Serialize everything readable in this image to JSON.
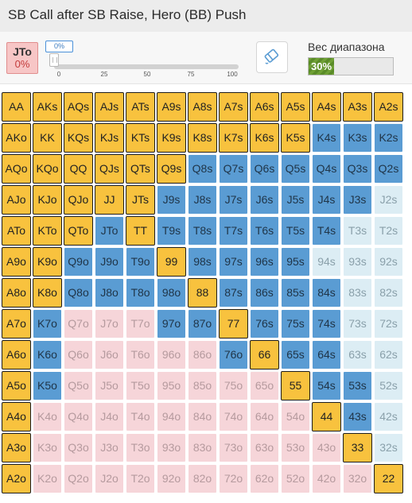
{
  "title": "SB Call after SB Raise, Hero (BB) Push",
  "selected_hand": {
    "label": "JTo",
    "percent": "0%"
  },
  "slider": {
    "value_label": "0%",
    "ticks": [
      "0",
      "25",
      "50",
      "75",
      "100"
    ]
  },
  "eraser_icon": "eraser-icon",
  "range_weight": {
    "label": "Вес диапазона",
    "value": "30%",
    "fraction": 0.3
  },
  "colors": {
    "push": "#f8c23e",
    "call": "#5a9cd3",
    "call_light": "#dcedf4",
    "fold": "#f6d5d9",
    "weight_fill": "#6fa035"
  },
  "grid": [
    [
      [
        "AA",
        "y"
      ],
      [
        "AKs",
        "y"
      ],
      [
        "AQs",
        "y"
      ],
      [
        "AJs",
        "y"
      ],
      [
        "ATs",
        "y"
      ],
      [
        "A9s",
        "y"
      ],
      [
        "A8s",
        "y"
      ],
      [
        "A7s",
        "y"
      ],
      [
        "A6s",
        "y"
      ],
      [
        "A5s",
        "y"
      ],
      [
        "A4s",
        "y"
      ],
      [
        "A3s",
        "y"
      ],
      [
        "A2s",
        "y"
      ]
    ],
    [
      [
        "AKo",
        "y"
      ],
      [
        "KK",
        "y"
      ],
      [
        "KQs",
        "y"
      ],
      [
        "KJs",
        "y"
      ],
      [
        "KTs",
        "y"
      ],
      [
        "K9s",
        "y"
      ],
      [
        "K8s",
        "y"
      ],
      [
        "K7s",
        "y"
      ],
      [
        "K6s",
        "y"
      ],
      [
        "K5s",
        "y"
      ],
      [
        "K4s",
        "b"
      ],
      [
        "K3s",
        "b"
      ],
      [
        "K2s",
        "b"
      ]
    ],
    [
      [
        "AQo",
        "y"
      ],
      [
        "KQo",
        "y"
      ],
      [
        "QQ",
        "y"
      ],
      [
        "QJs",
        "y"
      ],
      [
        "QTs",
        "y"
      ],
      [
        "Q9s",
        "y"
      ],
      [
        "Q8s",
        "b"
      ],
      [
        "Q7s",
        "b"
      ],
      [
        "Q6s",
        "b"
      ],
      [
        "Q5s",
        "b"
      ],
      [
        "Q4s",
        "b"
      ],
      [
        "Q3s",
        "b"
      ],
      [
        "Q2s",
        "b"
      ]
    ],
    [
      [
        "AJo",
        "y"
      ],
      [
        "KJo",
        "y"
      ],
      [
        "QJo",
        "y"
      ],
      [
        "JJ",
        "y"
      ],
      [
        "JTs",
        "y"
      ],
      [
        "J9s",
        "b"
      ],
      [
        "J8s",
        "b"
      ],
      [
        "J7s",
        "b"
      ],
      [
        "J6s",
        "b"
      ],
      [
        "J5s",
        "b"
      ],
      [
        "J4s",
        "b"
      ],
      [
        "J3s",
        "b"
      ],
      [
        "J2s",
        "lb"
      ]
    ],
    [
      [
        "ATo",
        "y"
      ],
      [
        "KTo",
        "y"
      ],
      [
        "QTo",
        "y"
      ],
      [
        "JTo",
        "b"
      ],
      [
        "TT",
        "y"
      ],
      [
        "T9s",
        "b"
      ],
      [
        "T8s",
        "b"
      ],
      [
        "T7s",
        "b"
      ],
      [
        "T6s",
        "b"
      ],
      [
        "T5s",
        "b"
      ],
      [
        "T4s",
        "b"
      ],
      [
        "T3s",
        "lb"
      ],
      [
        "T2s",
        "lb"
      ]
    ],
    [
      [
        "A9o",
        "y"
      ],
      [
        "K9o",
        "y"
      ],
      [
        "Q9o",
        "b"
      ],
      [
        "J9o",
        "b"
      ],
      [
        "T9o",
        "b"
      ],
      [
        "99",
        "y"
      ],
      [
        "98s",
        "b"
      ],
      [
        "97s",
        "b"
      ],
      [
        "96s",
        "b"
      ],
      [
        "95s",
        "b"
      ],
      [
        "94s",
        "lb"
      ],
      [
        "93s",
        "lb"
      ],
      [
        "92s",
        "lb"
      ]
    ],
    [
      [
        "A8o",
        "y"
      ],
      [
        "K8o",
        "y"
      ],
      [
        "Q8o",
        "b"
      ],
      [
        "J8o",
        "b"
      ],
      [
        "T8o",
        "b"
      ],
      [
        "98o",
        "b"
      ],
      [
        "88",
        "y"
      ],
      [
        "87s",
        "b"
      ],
      [
        "86s",
        "b"
      ],
      [
        "85s",
        "b"
      ],
      [
        "84s",
        "b"
      ],
      [
        "83s",
        "lb"
      ],
      [
        "82s",
        "lb"
      ]
    ],
    [
      [
        "A7o",
        "y"
      ],
      [
        "K7o",
        "b"
      ],
      [
        "Q7o",
        "p"
      ],
      [
        "J7o",
        "p"
      ],
      [
        "T7o",
        "p"
      ],
      [
        "97o",
        "b"
      ],
      [
        "87o",
        "b"
      ],
      [
        "77",
        "y"
      ],
      [
        "76s",
        "b"
      ],
      [
        "75s",
        "b"
      ],
      [
        "74s",
        "b"
      ],
      [
        "73s",
        "lb"
      ],
      [
        "72s",
        "lb"
      ]
    ],
    [
      [
        "A6o",
        "y"
      ],
      [
        "K6o",
        "b"
      ],
      [
        "Q6o",
        "p"
      ],
      [
        "J6o",
        "p"
      ],
      [
        "T6o",
        "p"
      ],
      [
        "96o",
        "p"
      ],
      [
        "86o",
        "p"
      ],
      [
        "76o",
        "b"
      ],
      [
        "66",
        "y"
      ],
      [
        "65s",
        "b"
      ],
      [
        "64s",
        "b"
      ],
      [
        "63s",
        "lb"
      ],
      [
        "62s",
        "lb"
      ]
    ],
    [
      [
        "A5o",
        "y"
      ],
      [
        "K5o",
        "b"
      ],
      [
        "Q5o",
        "p"
      ],
      [
        "J5o",
        "p"
      ],
      [
        "T5o",
        "p"
      ],
      [
        "95o",
        "p"
      ],
      [
        "85o",
        "p"
      ],
      [
        "75o",
        "p"
      ],
      [
        "65o",
        "p"
      ],
      [
        "55",
        "y"
      ],
      [
        "54s",
        "b"
      ],
      [
        "53s",
        "b"
      ],
      [
        "52s",
        "lb"
      ]
    ],
    [
      [
        "A4o",
        "y"
      ],
      [
        "K4o",
        "p"
      ],
      [
        "Q4o",
        "p"
      ],
      [
        "J4o",
        "p"
      ],
      [
        "T4o",
        "p"
      ],
      [
        "94o",
        "p"
      ],
      [
        "84o",
        "p"
      ],
      [
        "74o",
        "p"
      ],
      [
        "64o",
        "p"
      ],
      [
        "54o",
        "p"
      ],
      [
        "44",
        "y"
      ],
      [
        "43s",
        "b"
      ],
      [
        "42s",
        "lb"
      ]
    ],
    [
      [
        "A3o",
        "y"
      ],
      [
        "K3o",
        "p"
      ],
      [
        "Q3o",
        "p"
      ],
      [
        "J3o",
        "p"
      ],
      [
        "T3o",
        "p"
      ],
      [
        "93o",
        "p"
      ],
      [
        "83o",
        "p"
      ],
      [
        "73o",
        "p"
      ],
      [
        "63o",
        "p"
      ],
      [
        "53o",
        "p"
      ],
      [
        "43o",
        "p"
      ],
      [
        "33",
        "y"
      ],
      [
        "32s",
        "lb"
      ]
    ],
    [
      [
        "A2o",
        "y"
      ],
      [
        "K2o",
        "p"
      ],
      [
        "Q2o",
        "p"
      ],
      [
        "J2o",
        "p"
      ],
      [
        "T2o",
        "p"
      ],
      [
        "92o",
        "p"
      ],
      [
        "82o",
        "p"
      ],
      [
        "72o",
        "p"
      ],
      [
        "62o",
        "p"
      ],
      [
        "52o",
        "p"
      ],
      [
        "42o",
        "p"
      ],
      [
        "32o",
        "p"
      ],
      [
        "22",
        "y"
      ]
    ]
  ]
}
